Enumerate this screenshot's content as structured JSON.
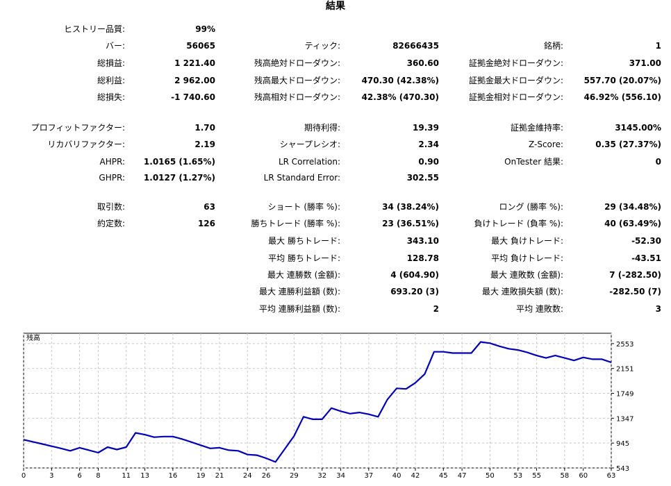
{
  "report": {
    "title": "結果",
    "col1": [
      {
        "label": "ヒストリー品質:",
        "value": "99%"
      },
      {
        "label": "バー:",
        "value": "56065"
      },
      {
        "label": "総損益:",
        "value": "1 221.40"
      },
      {
        "label": "総利益:",
        "value": "2 962.00"
      },
      {
        "label": "総損失:",
        "value": "-1 740.60"
      },
      {
        "label": "プロフィットファクター:",
        "value": "1.70"
      },
      {
        "label": "リカバリファクター:",
        "value": "2.19"
      },
      {
        "label": "AHPR:",
        "value": "1.0165 (1.65%)"
      },
      {
        "label": "GHPR:",
        "value": "1.0127 (1.27%)"
      },
      {
        "label": "取引数:",
        "value": "63"
      },
      {
        "label": "約定数:",
        "value": "126"
      }
    ],
    "col2": [
      {
        "label": "ティック:",
        "value": "82666435"
      },
      {
        "label": "残高絶対ドローダウン:",
        "value": "360.60"
      },
      {
        "label": "残高最大ドローダウン:",
        "value": "470.30 (42.38%)"
      },
      {
        "label": "残高相対ドローダウン:",
        "value": "42.38% (470.30)"
      },
      {
        "label": "期待利得:",
        "value": "19.39"
      },
      {
        "label": "シャープレシオ:",
        "value": "2.34"
      },
      {
        "label": "LR Correlation:",
        "value": "0.90"
      },
      {
        "label": "LR Standard Error:",
        "value": "302.55"
      },
      {
        "label": "ショート (勝率 %):",
        "value": "34 (38.24%)"
      },
      {
        "label": "勝ちトレード (勝率 %):",
        "value": "23 (36.51%)"
      },
      {
        "label": "最大 勝ちトレード:",
        "value": "343.10"
      },
      {
        "label": "平均 勝ちトレード:",
        "value": "128.78"
      },
      {
        "label": "最大 連勝数 (金額):",
        "value": "4 (604.90)"
      },
      {
        "label": "最大 連勝利益額 (数):",
        "value": "693.20 (3)"
      },
      {
        "label": "平均 連勝利益額 (数):",
        "value": "2"
      }
    ],
    "col3": [
      {
        "label": "銘柄:",
        "value": "1"
      },
      {
        "label": "証拠金絶対ドローダウン:",
        "value": "371.00"
      },
      {
        "label": "証拠金最大ドローダウン:",
        "value": "557.70 (20.07%)"
      },
      {
        "label": "証拠金相対ドローダウン:",
        "value": "46.92% (556.10)"
      },
      {
        "label": "証拠金維持率:",
        "value": "3145.00%"
      },
      {
        "label": "Z-Score:",
        "value": "0.35 (27.37%)"
      },
      {
        "label": "OnTester 結果:",
        "value": "0"
      },
      {
        "label": "ロング (勝率 %):",
        "value": "29 (34.48%)"
      },
      {
        "label": "負けトレード (負率 %):",
        "value": "40 (63.49%)"
      },
      {
        "label": "最大 負けトレード:",
        "value": "-52.30"
      },
      {
        "label": "平均 負けトレード:",
        "value": "-43.51"
      },
      {
        "label": "最大 連敗数 (金額):",
        "value": "7 (-282.50)"
      },
      {
        "label": "最大 連敗損失額 (数):",
        "value": "-282.50 (7)"
      },
      {
        "label": "平均 連敗数:",
        "value": "3"
      }
    ]
  },
  "chart_data": {
    "type": "line",
    "title": "残高",
    "xlabel": "",
    "ylabel": "",
    "x_ticks": [
      0,
      3,
      6,
      8,
      11,
      13,
      16,
      19,
      21,
      24,
      26,
      29,
      32,
      34,
      37,
      40,
      42,
      45,
      47,
      50,
      53,
      55,
      58,
      60,
      63
    ],
    "y_ticks": [
      543,
      945,
      1347,
      1749,
      2151,
      2553
    ],
    "xlim": [
      0,
      63
    ],
    "ylim": [
      543,
      2720
    ],
    "grid": true,
    "line_color": "#0000b4",
    "series": [
      {
        "x": [
          0,
          2,
          4,
          5,
          6,
          7,
          8,
          9,
          10,
          11,
          12,
          13,
          14,
          15,
          16,
          17,
          18,
          19,
          20,
          21,
          22,
          23,
          24,
          25,
          26,
          27,
          28,
          29,
          30,
          31,
          32,
          33,
          34,
          35,
          36,
          37,
          38,
          39,
          40,
          41,
          42,
          43,
          44,
          45,
          46,
          47,
          48,
          49,
          50,
          51,
          52,
          53,
          54,
          55,
          56,
          57,
          58,
          59,
          60,
          61,
          62,
          63
        ],
        "values": [
          1000,
          930,
          860,
          820,
          870,
          830,
          790,
          880,
          840,
          880,
          1110,
          1080,
          1040,
          1050,
          1050,
          1010,
          960,
          910,
          860,
          870,
          830,
          820,
          760,
          750,
          700,
          640,
          850,
          1060,
          1370,
          1330,
          1330,
          1510,
          1460,
          1420,
          1440,
          1410,
          1370,
          1650,
          1830,
          1820,
          1920,
          2060,
          2420,
          2420,
          2400,
          2400,
          2400,
          2580,
          2560,
          2510,
          2470,
          2450,
          2410,
          2360,
          2320,
          2360,
          2320,
          2280,
          2330,
          2300,
          2300,
          2250
        ]
      }
    ]
  }
}
